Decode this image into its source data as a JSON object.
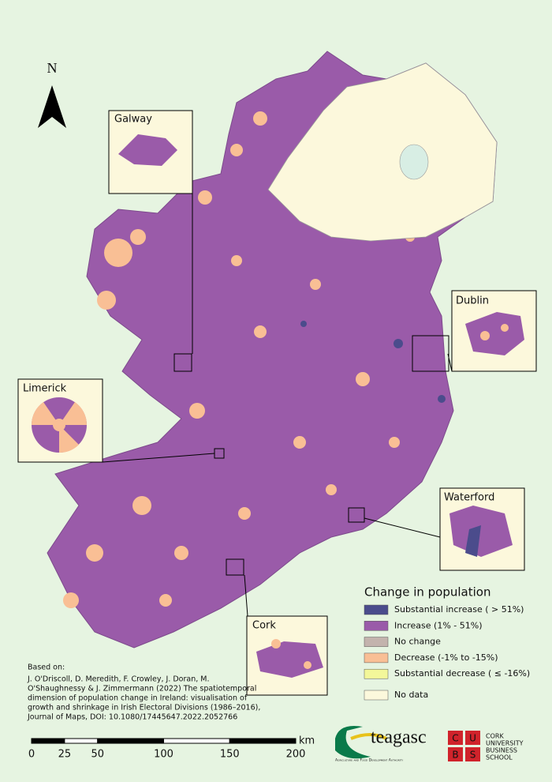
{
  "north_arrow": "N",
  "insets": [
    {
      "label": "Galway"
    },
    {
      "label": "Dublin"
    },
    {
      "label": "Limerick"
    },
    {
      "label": "Waterford"
    },
    {
      "label": "Cork"
    }
  ],
  "legend": {
    "title": "Change in population",
    "items": [
      {
        "label": "Substantial increase ( > 51%)",
        "color": "#4b4c8c"
      },
      {
        "label": "Increase (1% - 51%)",
        "color": "#9a5ba9"
      },
      {
        "label": "No change",
        "color": "#c3b3ad"
      },
      {
        "label": "Decrease (-1% to -15%)",
        "color": "#f9bf95"
      },
      {
        "label": "Substantial decrease ( ≤ -16%)",
        "color": "#f3f79a"
      }
    ],
    "no_data": {
      "label": "No data",
      "color": "#fcf8dc"
    }
  },
  "citation": [
    "Based on:",
    "J. O'Driscoll, D. Meredith, F. Crowley, J. Doran, M.",
    "O'Shaughnessy & J. Zimmermann (2022) The spatiotemporal",
    "dimension of population change in Ireland: visualisation of",
    "growth and shrinkage in Irish Electoral Divisions (1986–2016),",
    "Journal of Maps, DOI: 10.1080/17445647.2022.2052766"
  ],
  "scale_bar": {
    "ticks": [
      0,
      25,
      50,
      100,
      150,
      200
    ],
    "unit": "km"
  },
  "logos": {
    "teagasc": "teagasc",
    "teagasc_tagline": "Agriculture and Food Development Authority",
    "cubs_letters": [
      "C",
      "U",
      "B",
      "S"
    ],
    "cubs_name": [
      "CORK",
      "UNIVERSITY",
      "BUSINESS",
      "SCHOOL"
    ]
  }
}
